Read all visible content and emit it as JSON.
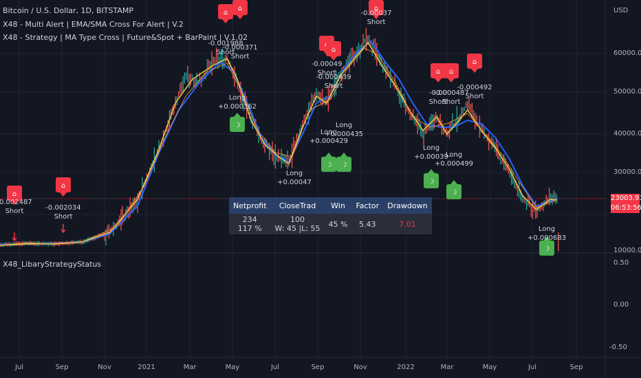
{
  "header": {
    "symbol_line": "Bitcoin / U.S. Dollar, 1D, BITSTAMP",
    "indicator_1": "X48 - Multi Alert | EMA/SMA Cross For Alert | V.2",
    "indicator_2": "X48 - Strategy | MA Type Cross | Future&Spot + BarPaint | V.1.02"
  },
  "price_axis": {
    "currency": "USD",
    "ticks": [
      "60000.00",
      "50000.00",
      "40000.00",
      "30000.00",
      "10000.00"
    ],
    "last_price": "23003.93",
    "countdown": "06:53:56"
  },
  "sub_pane": {
    "title": "X48_LibaryStrategyStatus",
    "ticks": [
      "0.50",
      "0.00",
      "-0.50"
    ]
  },
  "time_axis": [
    "Jul",
    "Sep",
    "Nov",
    "2021",
    "Mar",
    "May",
    "Jul",
    "Sep",
    "Nov",
    "2022",
    "Mar",
    "May",
    "Jul",
    "Sep"
  ],
  "stats_table": {
    "headers": [
      "Netprofit",
      "CloseTrad",
      "Win",
      "Factor",
      "Drawdown"
    ],
    "netprofit_1": "234",
    "netprofit_2": "117 %",
    "closetrad_1": "100",
    "closetrad_2": "W: 45 |L: 55",
    "win": "45 %",
    "factor": "5.43",
    "drawdown": "7.01"
  },
  "signals": [
    {
      "type": "Short",
      "value": "-0.002487"
    },
    {
      "type": "Short",
      "value": "-0.002034"
    },
    {
      "type": "Short",
      "value": "-0.001988"
    },
    {
      "type": "Short",
      "value": "-0.000371"
    },
    {
      "type": "Long",
      "value": "+0.000362"
    },
    {
      "type": "Long",
      "value": "+0.00047"
    },
    {
      "type": "Short",
      "value": "-0.00049"
    },
    {
      "type": "Short",
      "value": "-0.000439"
    },
    {
      "type": "Long",
      "value": "+0.000429"
    },
    {
      "type": "Long",
      "value": "+0.000435"
    },
    {
      "type": "Short",
      "value": "-0.00037"
    },
    {
      "type": "Short",
      "value": "-0.00"
    },
    {
      "type": "Short",
      "value": "-0.000487"
    },
    {
      "type": "Short",
      "value": "-0.000492"
    },
    {
      "type": "Long",
      "value": "+0.00039"
    },
    {
      "type": "Long",
      "value": "+0.000499"
    },
    {
      "type": "Long",
      "value": "+0.000683"
    }
  ],
  "colors": {
    "background": "#131722",
    "short_marker": "#f23645",
    "long_marker": "#4caf50",
    "ma_fast": "#f5c842",
    "ma_slow": "#2962ff",
    "header_cell": "#2a3f66",
    "drawdown_text": "#f23645"
  }
}
